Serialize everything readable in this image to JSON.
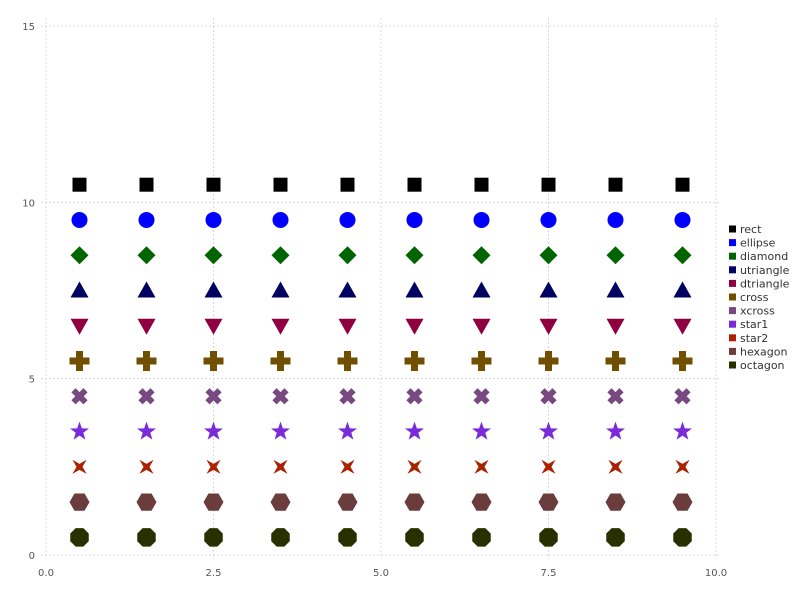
{
  "chart_data": {
    "type": "scatter",
    "title": "",
    "xlabel": "",
    "ylabel": "",
    "xlim": [
      0,
      10
    ],
    "ylim": [
      0,
      15
    ],
    "grid": true,
    "legend_position": "right",
    "x_ticks": [
      "0.0",
      "2.5",
      "5.0",
      "7.5",
      "10.0"
    ],
    "x_tick_values": [
      0,
      2.5,
      5,
      7.5,
      10
    ],
    "y_ticks": [
      "0",
      "5",
      "10",
      "15"
    ],
    "y_tick_values": [
      0,
      5,
      10,
      15
    ],
    "x": [
      0.5,
      1.5,
      2.5,
      3.5,
      4.5,
      5.5,
      6.5,
      7.5,
      8.5,
      9.5
    ],
    "series": [
      {
        "name": "rect",
        "marker": "rect",
        "color": "#000000",
        "y": 10.5
      },
      {
        "name": "ellipse",
        "marker": "ellipse",
        "color": "#0000ff",
        "y": 9.5
      },
      {
        "name": "diamond",
        "marker": "diamond",
        "color": "#006400",
        "y": 8.5
      },
      {
        "name": "utriangle",
        "marker": "utriangle",
        "color": "#000060",
        "y": 7.5
      },
      {
        "name": "dtriangle",
        "marker": "dtriangle",
        "color": "#900040",
        "y": 6.5
      },
      {
        "name": "cross",
        "marker": "cross",
        "color": "#705000",
        "y": 5.5
      },
      {
        "name": "xcross",
        "marker": "xcross",
        "color": "#784880",
        "y": 4.5
      },
      {
        "name": "star1",
        "marker": "star1",
        "color": "#7a2ad8",
        "y": 3.5
      },
      {
        "name": "star2",
        "marker": "star2",
        "color": "#aa2200",
        "y": 2.5
      },
      {
        "name": "hexagon",
        "marker": "hexagon",
        "color": "#6a3c3c",
        "y": 1.5
      },
      {
        "name": "octagon",
        "marker": "octagon",
        "color": "#283000",
        "y": 0.5
      }
    ]
  }
}
